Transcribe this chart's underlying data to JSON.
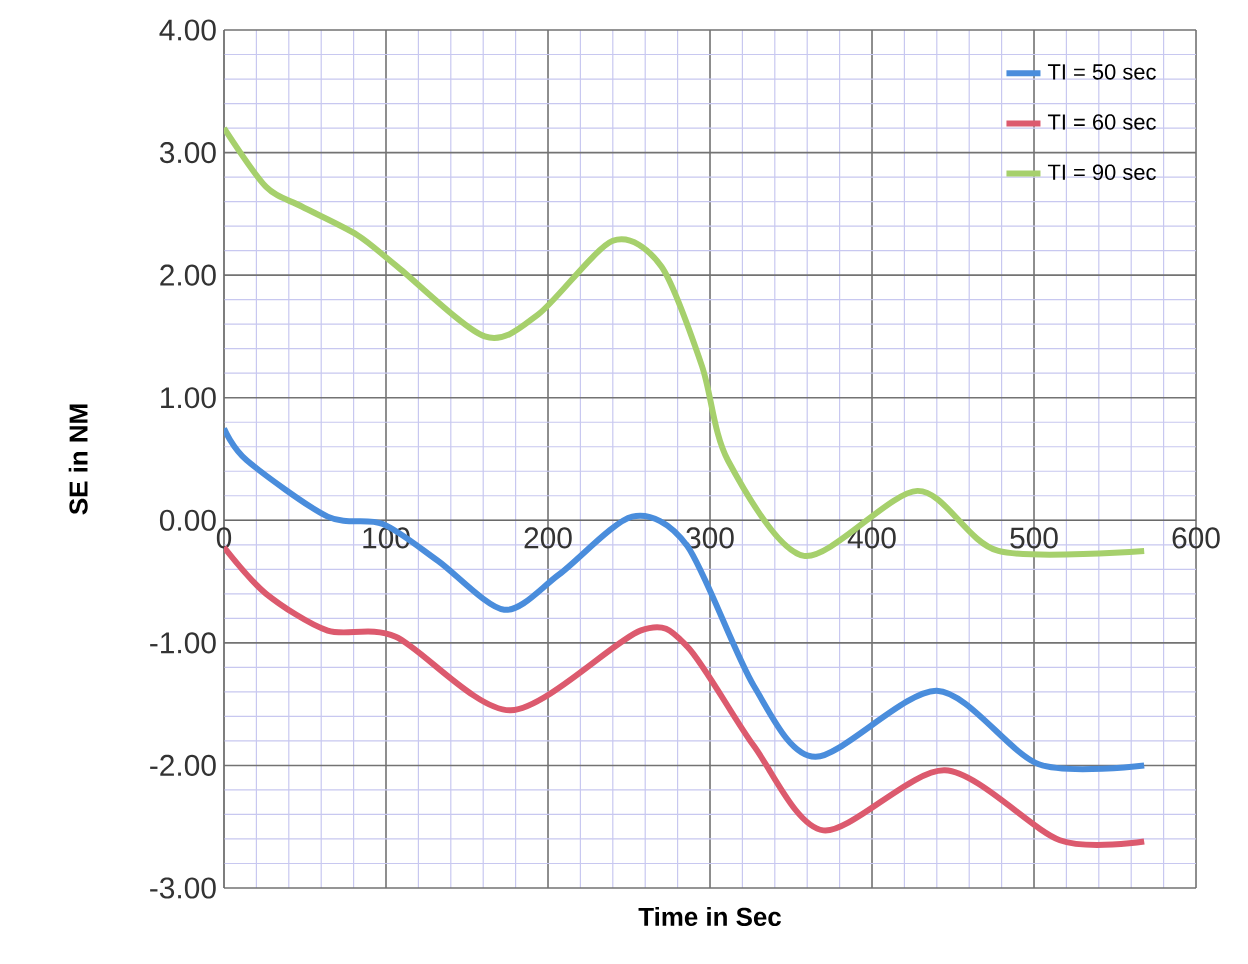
{
  "chart_data": {
    "type": "line",
    "xlabel": "Time in Sec",
    "ylabel": "SE in NM",
    "xlim": [
      0,
      600
    ],
    "ylim": [
      -3,
      4
    ],
    "xticks": [
      0,
      100,
      200,
      300,
      400,
      500,
      600
    ],
    "yticks": [
      {
        "value": -3,
        "label": "-3.00"
      },
      {
        "value": -2,
        "label": "-2.00"
      },
      {
        "value": -1,
        "label": "-1.00"
      },
      {
        "value": 0,
        "label": "0.00"
      },
      {
        "value": 1,
        "label": "1.00"
      },
      {
        "value": 2,
        "label": "2.00"
      },
      {
        "value": 3,
        "label": "3.00"
      },
      {
        "value": 4,
        "label": "4.00"
      }
    ],
    "grid": true,
    "legend": "top right",
    "marker": "none",
    "line_style": "solid",
    "series": [
      {
        "name": "TI = 50 sec",
        "color": "#4a8ddc",
        "x": [
          0,
          14,
          64,
          98,
          132,
          173,
          207,
          252,
          286,
          327,
          365,
          440,
          503,
          568
        ],
        "values": [
          0.75,
          0.49,
          0.03,
          -0.03,
          -0.33,
          -0.73,
          -0.44,
          0.03,
          -0.21,
          -1.35,
          -1.93,
          -1.39,
          -1.99,
          -2.0
        ]
      },
      {
        "name": "TI = 60 sec",
        "color": "#dc5a6e",
        "x": [
          0,
          26,
          64,
          106,
          177,
          257,
          286,
          327,
          370,
          445,
          516,
          568
        ],
        "values": [
          -0.22,
          -0.6,
          -0.9,
          -0.95,
          -1.55,
          -0.9,
          -1.03,
          -1.84,
          -2.53,
          -2.04,
          -2.61,
          -2.62
        ]
      },
      {
        "name": "TI = 90 sec",
        "color": "#a6d06c",
        "x": [
          0,
          26,
          48,
          82,
          107,
          161,
          194,
          240,
          270,
          295,
          311,
          358,
          428,
          478,
          568
        ],
        "values": [
          3.2,
          2.72,
          2.56,
          2.33,
          2.07,
          1.5,
          1.68,
          2.28,
          2.07,
          1.26,
          0.49,
          -0.29,
          0.24,
          -0.25,
          -0.25
        ]
      }
    ]
  }
}
